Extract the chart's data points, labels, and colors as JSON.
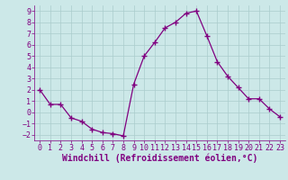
{
  "x": [
    0,
    1,
    2,
    3,
    4,
    5,
    6,
    7,
    8,
    9,
    10,
    11,
    12,
    13,
    14,
    15,
    16,
    17,
    18,
    19,
    20,
    21,
    22,
    23
  ],
  "y": [
    2,
    0.7,
    0.7,
    -0.5,
    -0.8,
    -1.5,
    -1.8,
    -1.9,
    -2.1,
    2.5,
    5.0,
    6.2,
    7.5,
    8.0,
    8.8,
    9.0,
    6.8,
    4.5,
    3.2,
    2.2,
    1.2,
    1.2,
    0.3,
    -0.4
  ],
  "line_color": "#800080",
  "marker": "+",
  "bg_color": "#cce8e8",
  "grid_color": "#aacccc",
  "xlabel": "Windchill (Refroidissement éolien,°C)",
  "xlim": [
    -0.5,
    23.5
  ],
  "ylim": [
    -2.5,
    9.5
  ],
  "yticks": [
    -2,
    -1,
    0,
    1,
    2,
    3,
    4,
    5,
    6,
    7,
    8,
    9
  ],
  "xticks": [
    0,
    1,
    2,
    3,
    4,
    5,
    6,
    7,
    8,
    9,
    10,
    11,
    12,
    13,
    14,
    15,
    16,
    17,
    18,
    19,
    20,
    21,
    22,
    23
  ],
  "tick_color": "#800080",
  "label_color": "#800080",
  "font_size": 6,
  "xlabel_fontsize": 7
}
